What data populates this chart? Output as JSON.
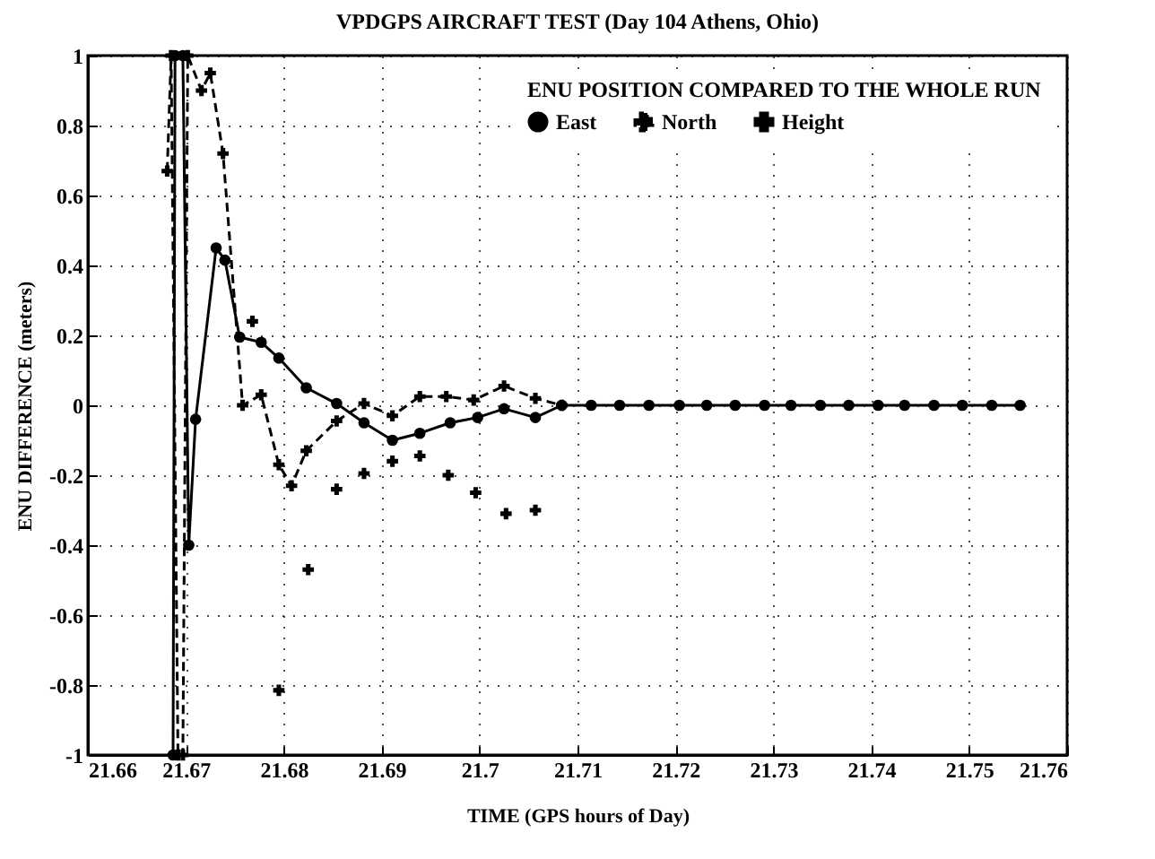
{
  "chart_data": {
    "type": "line",
    "title": "VPDGPS AIRCRAFT TEST (Day 104 Athens, Ohio)",
    "xlabel": "TIME (GPS hours of Day)",
    "ylabel": "ENU DIFFERENCE (meters)",
    "legend_title": "ENU POSITION COMPARED TO THE WHOLE RUN",
    "legend": "top right",
    "grid": true,
    "xlim": [
      21.66,
      21.76
    ],
    "xticks": [
      21.66,
      21.67,
      21.68,
      21.69,
      21.7,
      21.71,
      21.72,
      21.73,
      21.74,
      21.75,
      21.76
    ],
    "ylim": [
      -1,
      1
    ],
    "yticks": [
      -1,
      -0.8,
      -0.6,
      -0.4,
      -0.2,
      0,
      0.2,
      0.4,
      0.6,
      0.8,
      1
    ],
    "series": [
      {
        "name": "East",
        "color": "#000000",
        "type": "line",
        "marker": "circle",
        "line_style": "solid",
        "x": [
          21.6687,
          21.6689,
          21.6697,
          21.6703,
          21.671,
          21.6731,
          21.674,
          21.6755,
          21.6777,
          21.6795,
          21.6823,
          21.6854,
          21.6882,
          21.6911,
          21.6939,
          21.697,
          21.6998,
          21.7025,
          21.7057,
          21.7084,
          21.7114,
          21.7143,
          21.7173,
          21.7204,
          21.7232,
          21.7261,
          21.7291,
          21.7318,
          21.7348,
          21.7377,
          21.7407,
          21.7434,
          21.7464,
          21.7493,
          21.7523,
          21.7552
        ],
        "values": [
          -1,
          1,
          1,
          -0.4,
          -0.04,
          0.45,
          0.415,
          0.195,
          0.18,
          0.135,
          0.05,
          0.005,
          -0.05,
          -0.1,
          -0.08,
          -0.05,
          -0.035,
          -0.01,
          -0.035,
          0,
          0,
          0,
          0,
          0,
          0,
          0,
          0,
          0,
          0,
          0,
          0,
          0,
          0,
          0,
          0,
          0
        ]
      },
      {
        "name": "North",
        "color": "#000000",
        "type": "line",
        "marker": "cross",
        "line_style": "dashed",
        "x": [
          21.6681,
          21.6685,
          21.6692,
          21.6697,
          21.6702,
          21.6716,
          21.6725,
          21.6738,
          21.6758,
          21.6777,
          21.6795,
          21.6808,
          21.6823,
          21.6854,
          21.6882,
          21.6911,
          21.6939,
          21.6966,
          21.6994,
          21.7025,
          21.7057,
          21.7084
        ],
        "values": [
          0.67,
          1,
          -1,
          -1,
          1,
          0.9,
          0.95,
          0.72,
          0,
          0.03,
          -0.17,
          -0.23,
          -0.13,
          -0.045,
          0.005,
          -0.03,
          0.025,
          0.025,
          0.015,
          0.055,
          0.02,
          0
        ]
      },
      {
        "name": "Height",
        "color": "#000000",
        "type": "scatter",
        "marker": "cross",
        "x": [
          21.6768,
          21.6795,
          21.6825,
          21.6854,
          21.6882,
          21.6911,
          21.6939,
          21.6968,
          21.6996,
          21.7027,
          21.7057
        ],
        "values": [
          0.24,
          -0.815,
          -0.47,
          -0.24,
          -0.195,
          -0.16,
          -0.145,
          -0.2,
          -0.25,
          -0.31,
          -0.3
        ]
      }
    ]
  }
}
